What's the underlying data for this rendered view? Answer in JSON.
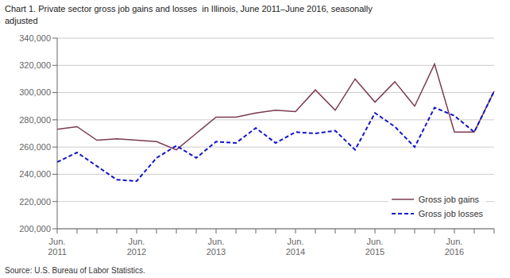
{
  "chart_data": {
    "type": "line",
    "title": "Chart 1. Private sector gross job gains and losses  in Illinois, June 2011–June 2016, seasonally\nadjusted",
    "annotations": [
      "Source: U.S. Bureau of Labor Statistics."
    ],
    "categories": [
      "Jun.\n2011",
      null,
      null,
      null,
      "Jun.\n2012",
      null,
      null,
      null,
      "Jun.\n2013",
      null,
      null,
      null,
      "Jun.\n2014",
      null,
      null,
      null,
      "Jun.\n2015",
      null,
      null,
      null,
      "Jun.\n2016",
      null,
      null
    ],
    "series": [
      {
        "name": "Gross job gains",
        "color": "#7B3B4E",
        "line_style": "solid",
        "values": [
          273000,
          275000,
          265000,
          266000,
          265000,
          264000,
          258000,
          270000,
          282000,
          282000,
          285000,
          287000,
          286000,
          302000,
          287000,
          310000,
          293000,
          308000,
          290000,
          321000,
          271000,
          271000,
          301000
        ]
      },
      {
        "name": "Gross job losses",
        "color": "#1414CC",
        "line_style": "dashed",
        "values": [
          249000,
          256000,
          246000,
          236000,
          235000,
          252000,
          261000,
          252000,
          264000,
          263000,
          274000,
          263000,
          271000,
          270000,
          272000,
          258000,
          285000,
          275000,
          260000,
          289000,
          283000,
          271000,
          301000
        ]
      }
    ],
    "ylim": [
      200000,
      340000
    ],
    "yticks": [
      {
        "value": 200000,
        "label": "200,000"
      },
      {
        "value": 220000,
        "label": "220,000"
      },
      {
        "value": 240000,
        "label": "240,000"
      },
      {
        "value": 260000,
        "label": "260,000"
      },
      {
        "value": 280000,
        "label": "280,000"
      },
      {
        "value": 300000,
        "label": "300,000"
      },
      {
        "value": 320000,
        "label": "320,000"
      },
      {
        "value": 340000,
        "label": "340,000"
      }
    ],
    "grid": true,
    "legend": "lower right"
  }
}
